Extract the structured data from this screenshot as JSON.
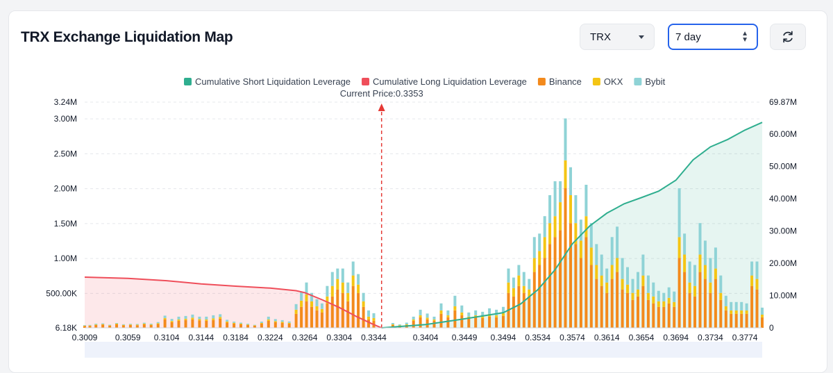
{
  "header": {
    "title": "TRX Exchange Liquidation Map",
    "coin_select": "TRX",
    "range_select": "7 day"
  },
  "icons": {
    "refresh": "refresh-icon",
    "dropdown": "chevron-down-icon",
    "stepper": "up-down-icon"
  },
  "colors": {
    "short": "#2fae8f",
    "long": "#ef4e5a",
    "binance": "#f38a1c",
    "okx": "#f4c514",
    "bybit": "#8fd3d6",
    "price_line": "#e53935",
    "accent": "#2563eb"
  },
  "chart_data": {
    "type": "bar",
    "current_price_label": "Current Price:0.3353",
    "current_price": 0.3353,
    "legend": [
      {
        "key": "short",
        "label": "Cumulative Short Liquidation Leverage"
      },
      {
        "key": "long",
        "label": "Cumulative Long Liquidation Leverage"
      },
      {
        "key": "binance",
        "label": "Binance"
      },
      {
        "key": "okx",
        "label": "OKX"
      },
      {
        "key": "bybit",
        "label": "Bybit"
      }
    ],
    "legend_position": "top-center",
    "x_ticks": [
      "0.3009",
      "0.3059",
      "0.3104",
      "0.3144",
      "0.3184",
      "0.3224",
      "0.3264",
      "0.3304",
      "0.3344",
      "0.3404",
      "0.3449",
      "0.3494",
      "0.3534",
      "0.3574",
      "0.3614",
      "0.3654",
      "0.3694",
      "0.3734",
      "0.3774"
    ],
    "x_range": [
      0.3009,
      0.3794
    ],
    "y_left_ticks": [
      "6.18K",
      "500.00K",
      "1.00M",
      "1.50M",
      "2.00M",
      "2.50M",
      "3.00M",
      "3.24M"
    ],
    "y_left_tick_values": [
      6180,
      500000,
      1000000,
      1500000,
      2000000,
      2500000,
      3000000,
      3240000
    ],
    "y_left_range": [
      6180,
      3240000
    ],
    "y_right_ticks": [
      "0",
      "10.00M",
      "20.00M",
      "30.00M",
      "40.00M",
      "50.00M",
      "60.00M",
      "69.87M"
    ],
    "y_right_tick_values": [
      0,
      10000000,
      20000000,
      30000000,
      40000000,
      50000000,
      60000000,
      69870000
    ],
    "y_right_range": [
      0,
      69870000
    ],
    "grid": true,
    "long_cumulative": [
      [
        0.3009,
        15700000
      ],
      [
        0.3059,
        15300000
      ],
      [
        0.3104,
        14600000
      ],
      [
        0.3144,
        13600000
      ],
      [
        0.3184,
        12900000
      ],
      [
        0.3224,
        12300000
      ],
      [
        0.3254,
        11500000
      ],
      [
        0.3264,
        10900000
      ],
      [
        0.3284,
        8700000
      ],
      [
        0.3304,
        6300000
      ],
      [
        0.3324,
        3500000
      ],
      [
        0.3344,
        1000000
      ],
      [
        0.3353,
        0
      ]
    ],
    "short_cumulative": [
      [
        0.3353,
        0
      ],
      [
        0.3404,
        1000000
      ],
      [
        0.3449,
        2800000
      ],
      [
        0.3494,
        4700000
      ],
      [
        0.3514,
        7400000
      ],
      [
        0.3534,
        11800000
      ],
      [
        0.3554,
        18000000
      ],
      [
        0.3574,
        26000000
      ],
      [
        0.3594,
        31500000
      ],
      [
        0.3614,
        35500000
      ],
      [
        0.3634,
        38400000
      ],
      [
        0.3654,
        40300000
      ],
      [
        0.3674,
        42300000
      ],
      [
        0.3694,
        45700000
      ],
      [
        0.3714,
        52000000
      ],
      [
        0.3734,
        56000000
      ],
      [
        0.3754,
        58300000
      ],
      [
        0.3774,
        61200000
      ],
      [
        0.3794,
        63600000
      ]
    ],
    "bars": [
      {
        "x": 0.3009,
        "binance": 26000,
        "okx": 6000,
        "bybit": 8000
      },
      {
        "x": 0.3015,
        "binance": 28000,
        "okx": 6000,
        "bybit": 8000
      },
      {
        "x": 0.3022,
        "binance": 40000,
        "okx": 8000,
        "bybit": 12000
      },
      {
        "x": 0.303,
        "binance": 45000,
        "okx": 8000,
        "bybit": 12000
      },
      {
        "x": 0.3038,
        "binance": 30000,
        "okx": 6000,
        "bybit": 9000
      },
      {
        "x": 0.3046,
        "binance": 50000,
        "okx": 10000,
        "bybit": 10000
      },
      {
        "x": 0.3054,
        "binance": 35000,
        "okx": 8000,
        "bybit": 9000
      },
      {
        "x": 0.3062,
        "binance": 40000,
        "okx": 8000,
        "bybit": 10000
      },
      {
        "x": 0.307,
        "binance": 38000,
        "okx": 8000,
        "bybit": 10000
      },
      {
        "x": 0.3078,
        "binance": 50000,
        "okx": 10000,
        "bybit": 14000
      },
      {
        "x": 0.3086,
        "binance": 40000,
        "okx": 8000,
        "bybit": 12000
      },
      {
        "x": 0.3094,
        "binance": 55000,
        "okx": 12000,
        "bybit": 16000
      },
      {
        "x": 0.3102,
        "binance": 120000,
        "okx": 20000,
        "bybit": 35000
      },
      {
        "x": 0.311,
        "binance": 80000,
        "okx": 18000,
        "bybit": 30000
      },
      {
        "x": 0.3118,
        "binance": 100000,
        "okx": 20000,
        "bybit": 40000
      },
      {
        "x": 0.3126,
        "binance": 110000,
        "okx": 20000,
        "bybit": 40000
      },
      {
        "x": 0.3134,
        "binance": 120000,
        "okx": 25000,
        "bybit": 45000
      },
      {
        "x": 0.3142,
        "binance": 105000,
        "okx": 20000,
        "bybit": 35000
      },
      {
        "x": 0.315,
        "binance": 100000,
        "okx": 20000,
        "bybit": 40000
      },
      {
        "x": 0.3158,
        "binance": 110000,
        "okx": 25000,
        "bybit": 45000
      },
      {
        "x": 0.3166,
        "binance": 130000,
        "okx": 25000,
        "bybit": 40000
      },
      {
        "x": 0.3174,
        "binance": 75000,
        "okx": 15000,
        "bybit": 25000
      },
      {
        "x": 0.3182,
        "binance": 60000,
        "okx": 12000,
        "bybit": 18000
      },
      {
        "x": 0.319,
        "binance": 50000,
        "okx": 10000,
        "bybit": 15000
      },
      {
        "x": 0.3198,
        "binance": 40000,
        "okx": 8000,
        "bybit": 12000
      },
      {
        "x": 0.3206,
        "binance": 30000,
        "okx": 6000,
        "bybit": 8000
      },
      {
        "x": 0.3214,
        "binance": 60000,
        "okx": 10000,
        "bybit": 20000
      },
      {
        "x": 0.3222,
        "binance": 100000,
        "okx": 20000,
        "bybit": 40000
      },
      {
        "x": 0.323,
        "binance": 80000,
        "okx": 15000,
        "bybit": 30000
      },
      {
        "x": 0.3238,
        "binance": 70000,
        "okx": 15000,
        "bybit": 25000
      },
      {
        "x": 0.3246,
        "binance": 60000,
        "okx": 12000,
        "bybit": 20000
      },
      {
        "x": 0.3254,
        "binance": 200000,
        "okx": 60000,
        "bybit": 80000
      },
      {
        "x": 0.326,
        "binance": 300000,
        "okx": 90000,
        "bybit": 120000
      },
      {
        "x": 0.3266,
        "binance": 380000,
        "okx": 100000,
        "bybit": 170000
      },
      {
        "x": 0.3272,
        "binance": 300000,
        "okx": 80000,
        "bybit": 120000
      },
      {
        "x": 0.3278,
        "binance": 250000,
        "okx": 60000,
        "bybit": 100000
      },
      {
        "x": 0.3284,
        "binance": 220000,
        "okx": 50000,
        "bybit": 80000
      },
      {
        "x": 0.329,
        "binance": 350000,
        "okx": 100000,
        "bybit": 150000
      },
      {
        "x": 0.3296,
        "binance": 450000,
        "okx": 150000,
        "bybit": 200000
      },
      {
        "x": 0.3302,
        "binance": 550000,
        "okx": 150000,
        "bybit": 150000
      },
      {
        "x": 0.3308,
        "binance": 500000,
        "okx": 150000,
        "bybit": 200000
      },
      {
        "x": 0.3314,
        "binance": 380000,
        "okx": 120000,
        "bybit": 150000
      },
      {
        "x": 0.332,
        "binance": 600000,
        "okx": 150000,
        "bybit": 200000
      },
      {
        "x": 0.3326,
        "binance": 500000,
        "okx": 120000,
        "bybit": 150000
      },
      {
        "x": 0.3332,
        "binance": 300000,
        "okx": 80000,
        "bybit": 120000
      },
      {
        "x": 0.3338,
        "binance": 120000,
        "okx": 40000,
        "bybit": 90000
      },
      {
        "x": 0.3344,
        "binance": 100000,
        "okx": 40000,
        "bybit": 70000
      },
      {
        "x": 0.3366,
        "binance": 40000,
        "okx": 10000,
        "bybit": 20000
      },
      {
        "x": 0.3374,
        "binance": 30000,
        "okx": 8000,
        "bybit": 12000
      },
      {
        "x": 0.3382,
        "binance": 40000,
        "okx": 10000,
        "bybit": 25000
      },
      {
        "x": 0.339,
        "binance": 100000,
        "okx": 20000,
        "bybit": 40000
      },
      {
        "x": 0.3398,
        "binance": 150000,
        "okx": 30000,
        "bybit": 80000
      },
      {
        "x": 0.3406,
        "binance": 120000,
        "okx": 25000,
        "bybit": 60000
      },
      {
        "x": 0.3414,
        "binance": 100000,
        "okx": 20000,
        "bybit": 40000
      },
      {
        "x": 0.3422,
        "binance": 200000,
        "okx": 50000,
        "bybit": 100000
      },
      {
        "x": 0.343,
        "binance": 150000,
        "okx": 30000,
        "bybit": 70000
      },
      {
        "x": 0.3438,
        "binance": 250000,
        "okx": 60000,
        "bybit": 150000
      },
      {
        "x": 0.3446,
        "binance": 180000,
        "okx": 40000,
        "bybit": 100000
      },
      {
        "x": 0.3454,
        "binance": 130000,
        "okx": 30000,
        "bybit": 60000
      },
      {
        "x": 0.3462,
        "binance": 150000,
        "okx": 30000,
        "bybit": 70000
      },
      {
        "x": 0.347,
        "binance": 140000,
        "okx": 30000,
        "bybit": 60000
      },
      {
        "x": 0.3478,
        "binance": 160000,
        "okx": 40000,
        "bybit": 80000
      },
      {
        "x": 0.3486,
        "binance": 150000,
        "okx": 30000,
        "bybit": 80000
      },
      {
        "x": 0.3494,
        "binance": 170000,
        "okx": 40000,
        "bybit": 90000
      },
      {
        "x": 0.35,
        "binance": 500000,
        "okx": 150000,
        "bybit": 200000
      },
      {
        "x": 0.3506,
        "binance": 450000,
        "okx": 120000,
        "bybit": 150000
      },
      {
        "x": 0.3512,
        "binance": 600000,
        "okx": 150000,
        "bybit": 150000
      },
      {
        "x": 0.3518,
        "binance": 500000,
        "okx": 100000,
        "bybit": 200000
      },
      {
        "x": 0.3524,
        "binance": 450000,
        "okx": 100000,
        "bybit": 150000
      },
      {
        "x": 0.353,
        "binance": 800000,
        "okx": 200000,
        "bybit": 300000
      },
      {
        "x": 0.3536,
        "binance": 900000,
        "okx": 200000,
        "bybit": 250000
      },
      {
        "x": 0.3542,
        "binance": 1000000,
        "okx": 300000,
        "bybit": 300000
      },
      {
        "x": 0.3548,
        "binance": 1200000,
        "okx": 300000,
        "bybit": 400000
      },
      {
        "x": 0.3554,
        "binance": 1300000,
        "okx": 300000,
        "bybit": 500000
      },
      {
        "x": 0.356,
        "binance": 1400000,
        "okx": 400000,
        "bybit": 300000
      },
      {
        "x": 0.3566,
        "binance": 2000000,
        "okx": 400000,
        "bybit": 600000
      },
      {
        "x": 0.3572,
        "binance": 1500000,
        "okx": 400000,
        "bybit": 400000
      },
      {
        "x": 0.3578,
        "binance": 1200000,
        "okx": 300000,
        "bybit": 400000
      },
      {
        "x": 0.3584,
        "binance": 1000000,
        "okx": 250000,
        "bybit": 300000
      },
      {
        "x": 0.359,
        "binance": 1300000,
        "okx": 300000,
        "bybit": 450000
      },
      {
        "x": 0.3596,
        "binance": 900000,
        "okx": 250000,
        "bybit": 350000
      },
      {
        "x": 0.3602,
        "binance": 700000,
        "okx": 200000,
        "bybit": 300000
      },
      {
        "x": 0.3608,
        "binance": 600000,
        "okx": 150000,
        "bybit": 300000
      },
      {
        "x": 0.3614,
        "binance": 500000,
        "okx": 150000,
        "bybit": 200000
      },
      {
        "x": 0.362,
        "binance": 700000,
        "okx": 200000,
        "bybit": 400000
      },
      {
        "x": 0.3626,
        "binance": 800000,
        "okx": 200000,
        "bybit": 450000
      },
      {
        "x": 0.3632,
        "binance": 550000,
        "okx": 150000,
        "bybit": 300000
      },
      {
        "x": 0.3638,
        "binance": 500000,
        "okx": 120000,
        "bybit": 250000
      },
      {
        "x": 0.3644,
        "binance": 400000,
        "okx": 100000,
        "bybit": 200000
      },
      {
        "x": 0.365,
        "binance": 450000,
        "okx": 100000,
        "bybit": 250000
      },
      {
        "x": 0.3656,
        "binance": 600000,
        "okx": 150000,
        "bybit": 300000
      },
      {
        "x": 0.3662,
        "binance": 400000,
        "okx": 100000,
        "bybit": 250000
      },
      {
        "x": 0.3668,
        "binance": 350000,
        "okx": 100000,
        "bybit": 200000
      },
      {
        "x": 0.3674,
        "binance": 300000,
        "okx": 80000,
        "bybit": 150000
      },
      {
        "x": 0.368,
        "binance": 300000,
        "okx": 80000,
        "bybit": 120000
      },
      {
        "x": 0.3686,
        "binance": 350000,
        "okx": 80000,
        "bybit": 150000
      },
      {
        "x": 0.3692,
        "binance": 300000,
        "okx": 70000,
        "bybit": 150000
      },
      {
        "x": 0.3698,
        "binance": 1000000,
        "okx": 300000,
        "bybit": 700000
      },
      {
        "x": 0.3704,
        "binance": 800000,
        "okx": 250000,
        "bybit": 300000
      },
      {
        "x": 0.371,
        "binance": 500000,
        "okx": 150000,
        "bybit": 300000
      },
      {
        "x": 0.3716,
        "binance": 450000,
        "okx": 150000,
        "bybit": 300000
      },
      {
        "x": 0.3722,
        "binance": 800000,
        "okx": 250000,
        "bybit": 450000
      },
      {
        "x": 0.3728,
        "binance": 700000,
        "okx": 200000,
        "bybit": 350000
      },
      {
        "x": 0.3734,
        "binance": 500000,
        "okx": 150000,
        "bybit": 350000
      },
      {
        "x": 0.374,
        "binance": 700000,
        "okx": 150000,
        "bybit": 300000
      },
      {
        "x": 0.3746,
        "binance": 400000,
        "okx": 100000,
        "bybit": 250000
      },
      {
        "x": 0.3752,
        "binance": 250000,
        "okx": 60000,
        "bybit": 150000
      },
      {
        "x": 0.3758,
        "binance": 200000,
        "okx": 50000,
        "bybit": 120000
      },
      {
        "x": 0.3764,
        "binance": 200000,
        "okx": 50000,
        "bybit": 120000
      },
      {
        "x": 0.377,
        "binance": 200000,
        "okx": 50000,
        "bybit": 120000
      },
      {
        "x": 0.3776,
        "binance": 200000,
        "okx": 50000,
        "bybit": 100000
      },
      {
        "x": 0.3782,
        "binance": 600000,
        "okx": 150000,
        "bybit": 200000
      },
      {
        "x": 0.3788,
        "binance": 550000,
        "okx": 150000,
        "bybit": 250000
      },
      {
        "x": 0.3794,
        "binance": 150000,
        "okx": 40000,
        "bybit": 100000
      }
    ]
  }
}
